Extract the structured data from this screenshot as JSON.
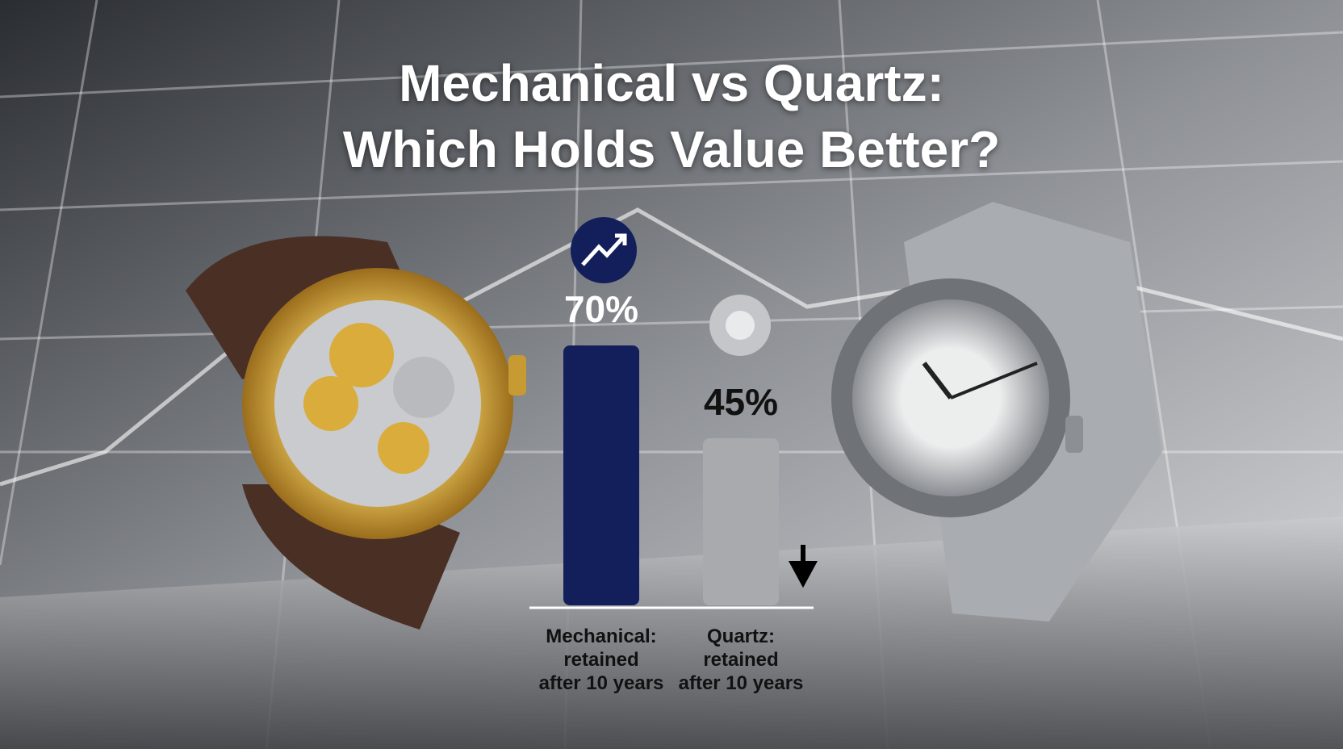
{
  "chart_data": {
    "type": "bar",
    "title": "Mechanical vs Quartz:\nWhich Holds Value Better?",
    "categories": [
      "Mechanical:\nretained\nafter 10 years",
      "Quartz:\nretained\nafter 10 years"
    ],
    "values": [
      70,
      45
    ],
    "value_labels": [
      "70%",
      "45%"
    ],
    "colors": [
      "#131f5a",
      "#a8aaae"
    ]
  }
}
